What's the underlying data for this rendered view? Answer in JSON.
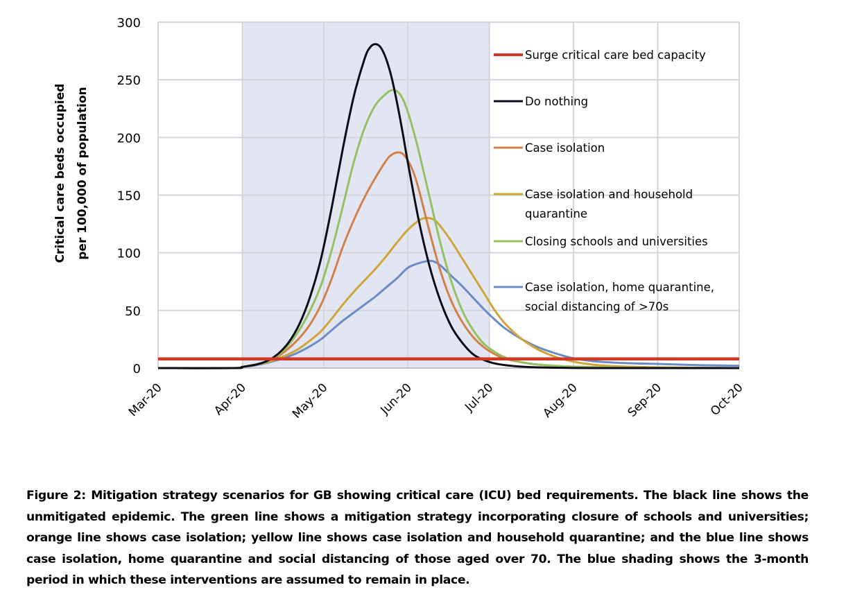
{
  "chart_data": {
    "type": "line",
    "title": "",
    "xlabel": "",
    "ylabel": [
      "Critical care beds occupied",
      "per 100,000 of population"
    ],
    "ylim": [
      0,
      300
    ],
    "yticks": [
      0,
      50,
      100,
      150,
      200,
      250,
      300
    ],
    "x_unit": "days since 1 Mar 2020",
    "xlim": [
      0,
      214
    ],
    "xticks": [
      {
        "label": "Mar-20",
        "day": 0
      },
      {
        "label": "Apr-20",
        "day": 31
      },
      {
        "label": "May-20",
        "day": 61
      },
      {
        "label": "Jun-20",
        "day": 92
      },
      {
        "label": "Jul-20",
        "day": 122
      },
      {
        "label": "Aug-20",
        "day": 153
      },
      {
        "label": "Sep-20",
        "day": 184
      },
      {
        "label": "Oct-20",
        "day": 214
      }
    ],
    "grid": true,
    "legend_position": "top-right",
    "shaded_period": {
      "start_day": 31,
      "end_day": 122,
      "color": "#e2e6f2",
      "label": "3-month intervention period"
    },
    "series": [
      {
        "name": "Surge critical care bed capacity",
        "color": "#d03a25",
        "x": [
          0,
          214
        ],
        "y": [
          8,
          8
        ]
      },
      {
        "name": "Do nothing",
        "color": "#0d0d16",
        "x": [
          0,
          28,
          31,
          36,
          40,
          44,
          48,
          52,
          56,
          60,
          64,
          68,
          72,
          76,
          78,
          80,
          82,
          84,
          86,
          88,
          90,
          92,
          96,
          100,
          104,
          108,
          112,
          116,
          120,
          124,
          128,
          134,
          140,
          150,
          160,
          175,
          214
        ],
        "y": [
          0,
          0,
          1,
          3,
          6,
          12,
          22,
          38,
          62,
          95,
          140,
          190,
          235,
          268,
          278,
          281,
          278,
          268,
          252,
          230,
          205,
          178,
          128,
          88,
          58,
          36,
          22,
          12,
          7,
          4,
          2.5,
          1.2,
          0.6,
          0.2,
          0,
          0,
          0
        ]
      },
      {
        "name": "Case isolation",
        "color": "#d2804a",
        "x": [
          0,
          28,
          31,
          36,
          40,
          44,
          48,
          52,
          56,
          60,
          64,
          68,
          72,
          76,
          80,
          84,
          86,
          88,
          90,
          92,
          94,
          96,
          100,
          104,
          108,
          112,
          116,
          120,
          124,
          128,
          134,
          140,
          150,
          160,
          175,
          214
        ],
        "y": [
          0,
          0,
          1,
          3,
          6,
          10,
          17,
          26,
          38,
          55,
          78,
          105,
          128,
          148,
          165,
          180,
          185,
          187,
          186,
          180,
          170,
          155,
          118,
          84,
          58,
          40,
          27,
          18,
          12,
          8,
          5,
          3,
          1.5,
          0.8,
          0.3,
          0
        ]
      },
      {
        "name": "Case isolation and household quarantine",
        "color": "#d0a43a",
        "x": [
          0,
          28,
          31,
          36,
          40,
          44,
          48,
          52,
          56,
          60,
          64,
          68,
          72,
          76,
          80,
          84,
          88,
          92,
          96,
          98,
          100,
          102,
          104,
          108,
          112,
          116,
          120,
          124,
          128,
          134,
          140,
          146,
          152,
          160,
          170,
          185,
          214
        ],
        "y": [
          0,
          0,
          1,
          3,
          5,
          8,
          12,
          17,
          24,
          32,
          43,
          55,
          66,
          76,
          86,
          97,
          109,
          120,
          128,
          130,
          130,
          128,
          123,
          110,
          95,
          80,
          65,
          50,
          38,
          25,
          16,
          10,
          6,
          3,
          1.5,
          0.6,
          0
        ]
      },
      {
        "name": "Closing schools and universities",
        "color": "#93c162",
        "x": [
          0,
          28,
          31,
          36,
          40,
          44,
          48,
          52,
          56,
          60,
          64,
          68,
          72,
          76,
          80,
          84,
          86,
          88,
          90,
          92,
          94,
          96,
          100,
          104,
          108,
          112,
          116,
          120,
          124,
          128,
          134,
          140,
          150,
          160,
          175,
          214
        ],
        "y": [
          0,
          0,
          1,
          3,
          6,
          11,
          20,
          33,
          50,
          72,
          103,
          140,
          178,
          208,
          228,
          238,
          241,
          240,
          234,
          222,
          206,
          188,
          148,
          108,
          75,
          50,
          33,
          21,
          14,
          9,
          5,
          3,
          1.5,
          0.8,
          0.3,
          0
        ]
      },
      {
        "name": "Case isolation, home quarantine, social distancing of >70s",
        "color": "#6a8bc3",
        "x": [
          0,
          28,
          31,
          36,
          40,
          44,
          48,
          52,
          56,
          60,
          64,
          68,
          72,
          76,
          80,
          84,
          88,
          92,
          96,
          100,
          102,
          104,
          108,
          112,
          116,
          120,
          124,
          128,
          134,
          140,
          146,
          152,
          160,
          170,
          185,
          200,
          214
        ],
        "y": [
          0,
          0,
          1,
          2.5,
          4.5,
          7,
          10,
          14,
          19,
          25,
          33,
          41,
          48,
          55,
          62,
          70,
          78,
          87,
          91,
          93,
          92,
          89,
          80,
          71,
          61,
          51,
          42,
          34,
          25,
          18,
          13,
          9,
          6,
          4.5,
          3.5,
          2.5,
          2
        ]
      }
    ]
  },
  "caption": "Figure 2: Mitigation strategy scenarios for GB showing critical care (ICU) bed requirements. The black line shows the unmitigated epidemic. The green line shows a mitigation strategy incorporating closure of schools and universities; orange line shows case isolation; yellow line shows case isolation and household quarantine; and the blue line shows case isolation, home quarantine and social distancing of those aged over 70. The blue shading shows the 3-month period in which these interventions are assumed to remain in place.",
  "legend": {
    "entries": [
      {
        "lines": [
          "Surge critical care bed capacity"
        ],
        "color": "#d03a25"
      },
      {
        "lines": [
          "Do nothing"
        ],
        "color": "#0d0d16"
      },
      {
        "lines": [
          "Case isolation"
        ],
        "color": "#d2804a"
      },
      {
        "lines": [
          "Case isolation and household",
          "quarantine"
        ],
        "color": "#d0a43a"
      },
      {
        "lines": [
          "Closing schools and universities"
        ],
        "color": "#93c162"
      },
      {
        "lines": [
          "Case isolation, home quarantine,",
          "social distancing of >70s"
        ],
        "color": "#6a8bc3"
      }
    ]
  }
}
